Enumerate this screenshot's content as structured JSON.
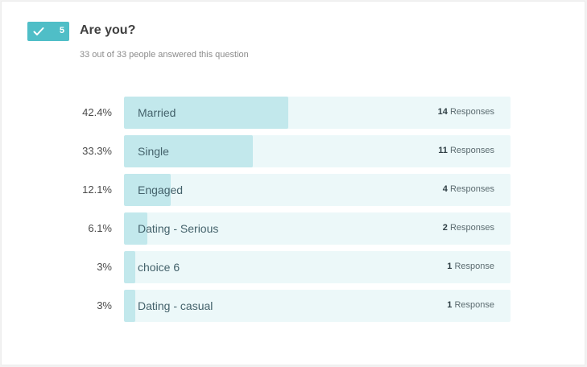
{
  "question": {
    "number": "5",
    "title": "Are you?",
    "subtitle": "33 out of 33 people answered this question",
    "badge_icon": "checkmark-icon",
    "badge_color": "#4fbec7"
  },
  "results": [
    {
      "percent_label": "42.4%",
      "fraction": 0.424,
      "choice": "Married",
      "count": "14",
      "unit": "Responses"
    },
    {
      "percent_label": "33.3%",
      "fraction": 0.333,
      "choice": "Single",
      "count": "11",
      "unit": "Responses"
    },
    {
      "percent_label": "12.1%",
      "fraction": 0.121,
      "choice": "Engaged",
      "count": "4",
      "unit": "Responses"
    },
    {
      "percent_label": "6.1%",
      "fraction": 0.061,
      "choice": "Dating - Serious",
      "count": "2",
      "unit": "Responses"
    },
    {
      "percent_label": "3%",
      "fraction": 0.03,
      "choice": "choice 6",
      "count": "1",
      "unit": "Response"
    },
    {
      "percent_label": "3%",
      "fraction": 0.03,
      "choice": "Dating - casual",
      "count": "1",
      "unit": "Response"
    }
  ]
}
